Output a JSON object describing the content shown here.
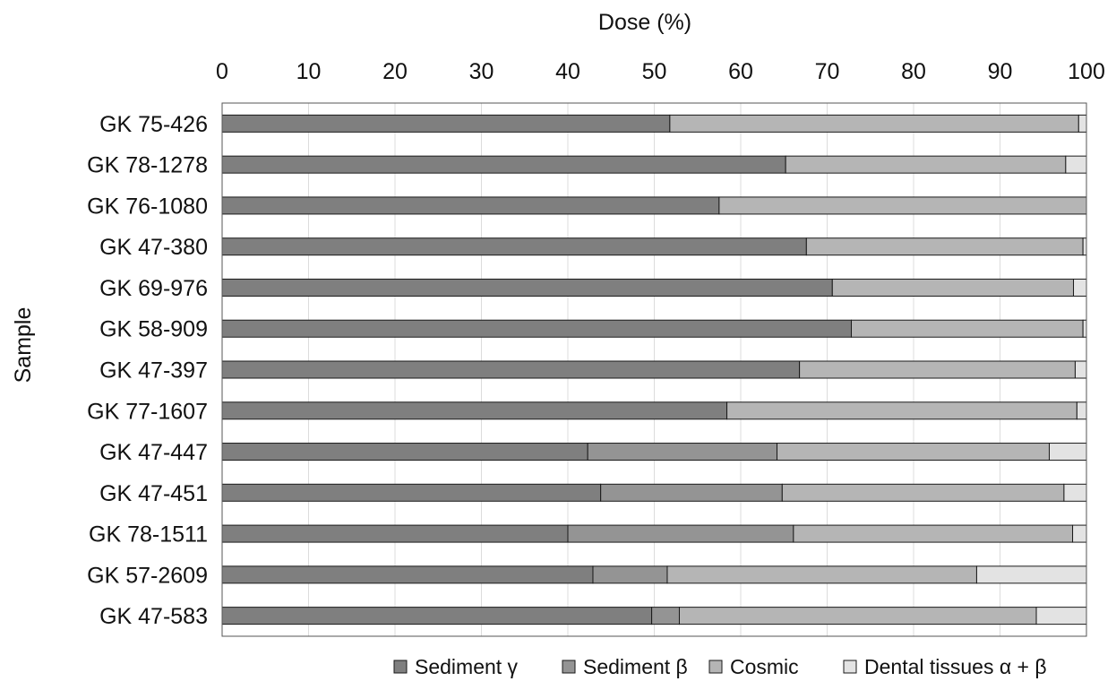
{
  "chart_data": {
    "type": "bar",
    "orientation": "horizontal",
    "stacked": true,
    "title": "",
    "xlabel": "Dose (%)",
    "ylabel": "Sample",
    "xlim": [
      0,
      100
    ],
    "xticks": [
      "0",
      "10",
      "20",
      "30",
      "40",
      "50",
      "60",
      "70",
      "80",
      "90",
      "100"
    ],
    "grid": true,
    "legend_position": "bottom",
    "categories": [
      "GK 75-426",
      "GK 78-1278",
      "GK 76-1080",
      "GK 47-380",
      "GK 69-976",
      "GK 58-909",
      "GK 47-397",
      "GK 77-1607",
      "GK 47-447",
      "GK 47-451",
      "GK 78-1511",
      "GK 57-2609",
      "GK 47-583"
    ],
    "series": [
      {
        "name": "Sediment γ",
        "color": "#7f7f7f",
        "values": [
          51.8,
          65.2,
          57.5,
          67.6,
          70.6,
          72.8,
          66.8,
          58.4,
          42.3,
          43.8,
          40.0,
          42.9,
          49.7
        ]
      },
      {
        "name": "Sediment β",
        "color": "#949494",
        "values": [
          0,
          0,
          0,
          0,
          0,
          0,
          0,
          0,
          21.9,
          21.0,
          26.1,
          8.6,
          3.2
        ]
      },
      {
        "name": "Cosmic",
        "color": "#b5b5b5",
        "values": [
          47.3,
          32.4,
          42.5,
          32.0,
          27.9,
          26.8,
          31.9,
          40.5,
          31.5,
          32.6,
          32.3,
          35.8,
          41.3
        ]
      },
      {
        "name": "Dental tissues α + β",
        "color": "#e3e3e3",
        "values": [
          0.9,
          2.4,
          0,
          0.4,
          1.5,
          0.4,
          1.3,
          1.1,
          4.3,
          2.6,
          1.6,
          12.7,
          5.8
        ]
      }
    ]
  }
}
